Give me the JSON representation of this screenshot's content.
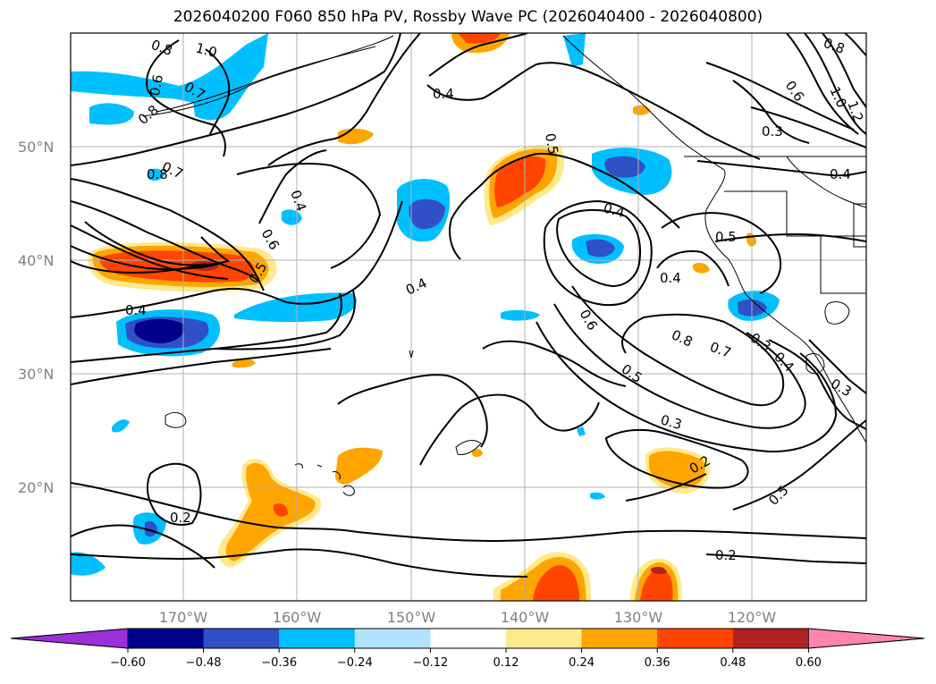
{
  "title": "2026040200 F060 850 hPa PV, Rossby Wave PC (2026040400 - 2026040800)",
  "lat_labels": [
    "50°N",
    "40°N",
    "30°N",
    "20°N"
  ],
  "lon_labels": [
    "170°W",
    "160°W",
    "150°W",
    "140°W",
    "130°W",
    "120°W"
  ],
  "colorbar": {
    "ticks": [
      "−0.60",
      "−0.48",
      "−0.36",
      "−0.24",
      "−0.12",
      "0.12",
      "0.24",
      "0.36",
      "0.48",
      "0.60"
    ],
    "colors": [
      "#9b30d9",
      "#00008b",
      "#3050c8",
      "#00bfff",
      "#b0e2ff",
      "#ffffff",
      "#ffe98a",
      "#ffa500",
      "#ff4500",
      "#b22222",
      "#ff85b0"
    ]
  },
  "contour_labels": [
    "0.8",
    "1.0",
    "0.8",
    "0.6",
    "0.7",
    "0.6",
    "0.4",
    "0.5",
    "0.8",
    "1.0",
    "1.2",
    "0.3",
    "0.4",
    "0.7",
    "0.8",
    "0.6",
    "0.4",
    "0.5",
    "0.4",
    "0.4",
    "0.4",
    "0.5",
    "0.4",
    "0.6",
    "0.8",
    "0.7",
    "0.5",
    "0.3",
    "0.4",
    "0.3",
    "0.3",
    "0.2",
    "0.5",
    "0.2",
    "0.2"
  ]
}
